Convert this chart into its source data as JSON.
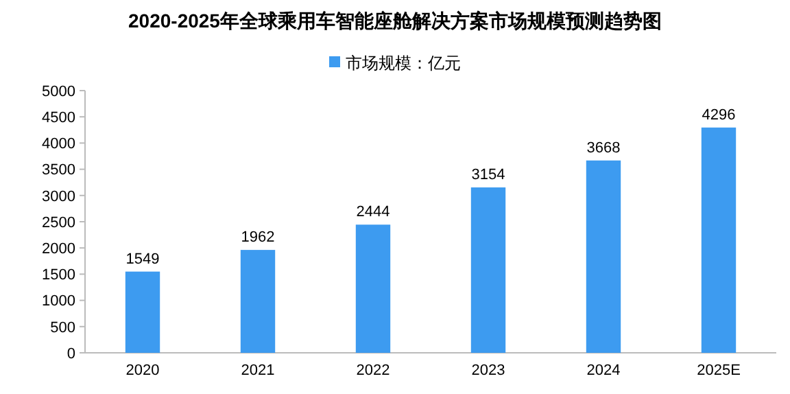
{
  "chart_data": {
    "type": "bar",
    "title": "2020-2025年全球乘用车智能座舱解决方案市场规模预测趋势图",
    "categories": [
      "2020",
      "2021",
      "2022",
      "2023",
      "2024",
      "2025E"
    ],
    "series": [
      {
        "name": "市场规模：亿元",
        "color": "#3d9bf0",
        "values": [
          1549,
          1962,
          2444,
          3154,
          3668,
          4296
        ]
      }
    ],
    "ylim": [
      0,
      5000
    ],
    "yticks": [
      0,
      500,
      1000,
      1500,
      2000,
      2500,
      3000,
      3500,
      4000,
      4500,
      5000
    ],
    "data_labels": true,
    "legend": "top",
    "grid": false
  }
}
